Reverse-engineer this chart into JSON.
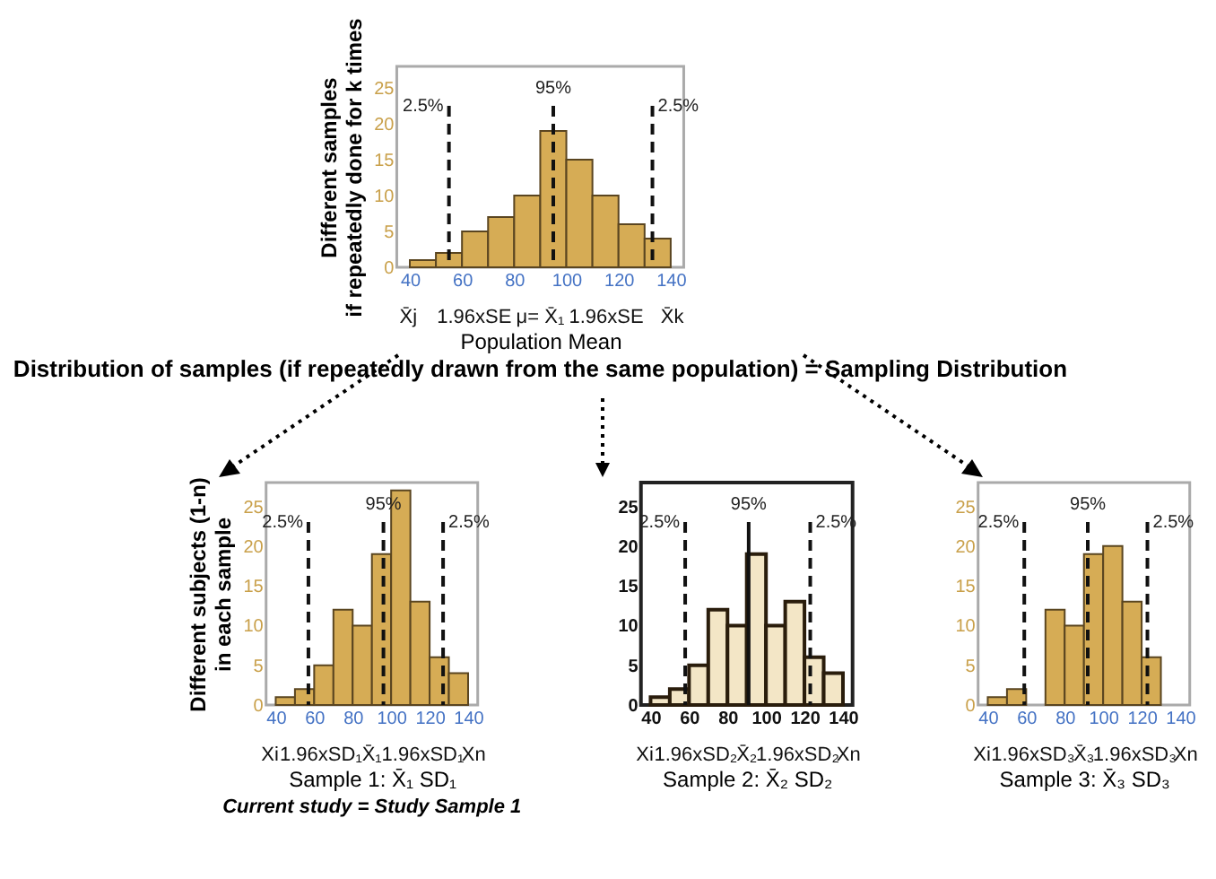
{
  "chart_data": [
    {
      "type": "histogram",
      "title": "Distribution of samples (if repeatedly drawn from the same population) = Sampling Distribution",
      "ylabel": "Different samples\nif repeatedly done for k times",
      "xlabel": "Population Mean",
      "bins": [
        40,
        50,
        60,
        70,
        80,
        90,
        100,
        110,
        120,
        130,
        140
      ],
      "values": [
        1,
        2,
        5,
        7,
        10,
        19,
        15,
        10,
        6,
        4
      ],
      "color": "#d6ac55",
      "xlim": [
        35,
        145
      ],
      "xticks": [
        40,
        60,
        80,
        100,
        120,
        140
      ],
      "ylim": [
        0,
        28
      ],
      "yticks": [
        0,
        5,
        10,
        15,
        20,
        25
      ],
      "ref_lines": [
        {
          "axis": "x",
          "value": 55,
          "line_style": "dashed"
        },
        {
          "axis": "x",
          "value": 95,
          "line_style": "dashed"
        },
        {
          "axis": "x",
          "value": 133,
          "line_style": "dashed"
        }
      ],
      "annotations": [
        "2.5%",
        "95%",
        "2.5%",
        "X̄j",
        "1.96xSE",
        "μ= X̄₁",
        "1.96xSE",
        "X̄k"
      ]
    },
    {
      "type": "histogram",
      "title": "Current study = Study Sample 1",
      "ylabel": "Different subjects (1-n)\nin each sample",
      "xlabel": "Sample 1: X̄₁ SD₁",
      "bins": [
        40,
        50,
        60,
        70,
        80,
        90,
        100,
        110,
        120,
        130,
        140
      ],
      "values": [
        1,
        2,
        5,
        12,
        10,
        19,
        27,
        13,
        6,
        4
      ],
      "color": "#d6ac55",
      "xlim": [
        35,
        145
      ],
      "xticks": [
        40,
        60,
        80,
        100,
        120,
        140
      ],
      "ylim": [
        0,
        28
      ],
      "yticks": [
        0,
        5,
        10,
        15,
        20,
        25
      ],
      "ref_lines": [
        {
          "axis": "x",
          "value": 57,
          "line_style": "dashed"
        },
        {
          "axis": "x",
          "value": 96,
          "line_style": "dashed"
        },
        {
          "axis": "x",
          "value": 127,
          "line_style": "dashed"
        }
      ],
      "annotations": [
        "2.5%",
        "95%",
        "2.5%",
        "Xi",
        "1.96xSD₁",
        "X̄₁",
        "1.96xSD₁",
        "Xn"
      ]
    },
    {
      "type": "histogram",
      "xlabel": "Sample 2: X̄₂ SD₂",
      "bins": [
        40,
        50,
        60,
        70,
        80,
        90,
        100,
        110,
        120,
        130,
        140
      ],
      "values": [
        1,
        2,
        5,
        12,
        10,
        19,
        10,
        13,
        6,
        4
      ],
      "color": "#f3e6c6",
      "xlim": [
        35,
        145
      ],
      "xticks": [
        40,
        60,
        80,
        100,
        120,
        140
      ],
      "ylim": [
        0,
        28
      ],
      "yticks": [
        0,
        5,
        10,
        15,
        20,
        25
      ],
      "ref_lines": [
        {
          "axis": "x",
          "value": 58,
          "line_style": "dashed"
        },
        {
          "axis": "x",
          "value": 91,
          "line_style": "solid"
        },
        {
          "axis": "x",
          "value": 123,
          "line_style": "dashed"
        }
      ],
      "annotations": [
        "2.5%",
        "95%",
        "2.5%",
        "Xi",
        "1.96xSD₂",
        "X̄₂",
        "1.96xSD₂",
        "Xn"
      ]
    },
    {
      "type": "histogram",
      "xlabel": "Sample 3: X̄₃ SD₃",
      "bins": [
        40,
        50,
        60,
        70,
        80,
        90,
        100,
        110,
        120,
        130,
        140
      ],
      "values": [
        1,
        2,
        0,
        12,
        10,
        19,
        20,
        13,
        6,
        0
      ],
      "color": "#d6ac55",
      "xlim": [
        35,
        145
      ],
      "xticks": [
        40,
        60,
        80,
        100,
        120,
        140
      ],
      "ylim": [
        0,
        28
      ],
      "yticks": [
        0,
        5,
        10,
        15,
        20,
        25
      ],
      "ref_lines": [
        {
          "axis": "x",
          "value": 59,
          "line_style": "dashed"
        },
        {
          "axis": "x",
          "value": 92,
          "line_style": "dashed"
        },
        {
          "axis": "x",
          "value": 123,
          "line_style": "dashed"
        }
      ],
      "annotations": [
        "2.5%",
        "95%",
        "2.5%",
        "Xi",
        "1.96xSD₃",
        "X̄₃",
        "1.96xSD₃",
        "Xn"
      ]
    }
  ]
}
